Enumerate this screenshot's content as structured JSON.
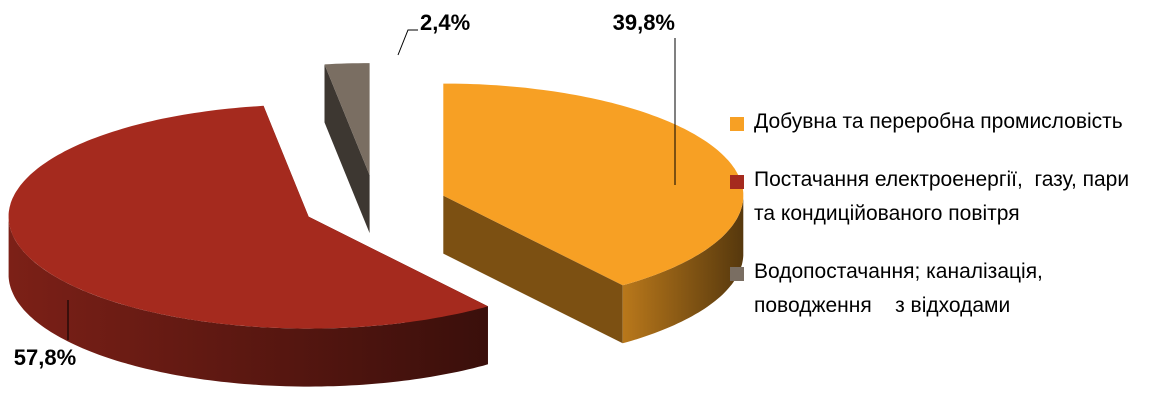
{
  "chart_data": {
    "type": "pie",
    "categories": [
      "Добувна та переробна промисловість",
      "Постачання електроенергії,  газу, пари та кондиційованого повітря",
      "Водопостачання; каналізація, поводження    з відходами"
    ],
    "values": [
      39.8,
      57.8,
      2.4
    ],
    "value_labels": [
      "39,8%",
      "57,8%",
      "2,4%"
    ],
    "colors": [
      "#F7A024",
      "#A52A1E",
      "#7A6E62"
    ],
    "legend": "right"
  }
}
